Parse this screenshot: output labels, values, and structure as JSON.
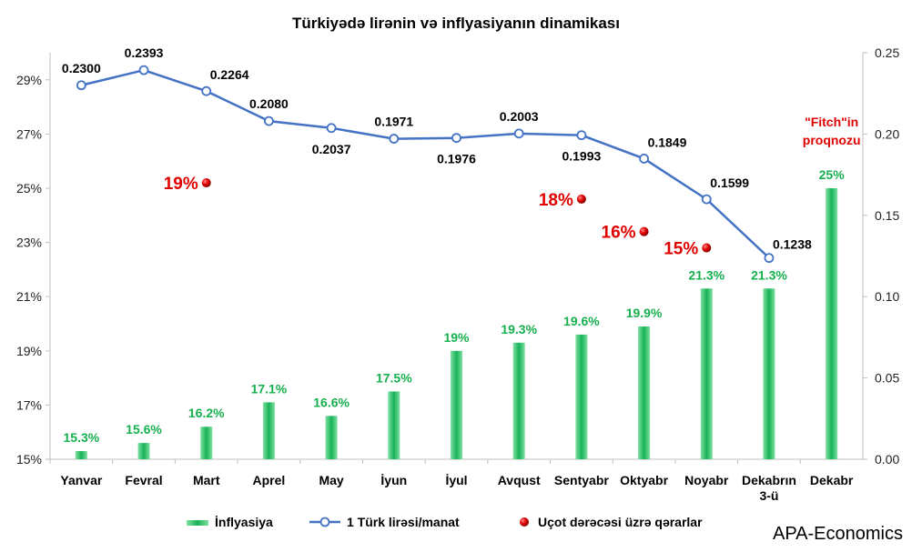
{
  "chart_data": {
    "type": "bar",
    "title": "Türkiyədə lirənin və inflyasiyanın dinamikası",
    "categories": [
      "Yanvar",
      "Fevral",
      "Mart",
      "Aprel",
      "May",
      "İyun",
      "İyul",
      "Avqust",
      "Sentyabr",
      "Oktyabr",
      "Noyabr",
      "Dekabrın 3-ü",
      "Dekabr"
    ],
    "left_axis": {
      "ylim": [
        15,
        30
      ],
      "ticks": [
        "15%",
        "17%",
        "19%",
        "21%",
        "23%",
        "25%",
        "27%",
        "29%"
      ]
    },
    "right_axis": {
      "ylim": [
        0,
        0.25
      ],
      "ticks": [
        "0.00",
        "0.05",
        "0.10",
        "0.15",
        "0.20",
        "0.25"
      ]
    },
    "series": [
      {
        "name": "İnflyasiya",
        "type": "bar",
        "axis": "left",
        "color": "#1fb45a",
        "values": [
          15.3,
          15.6,
          16.2,
          17.1,
          16.6,
          17.5,
          19,
          19.3,
          19.6,
          19.9,
          21.3,
          21.3,
          25
        ],
        "labels": [
          "15.3%",
          "15.6%",
          "16.2%",
          "17.1%",
          "16.6%",
          "17.5%",
          "19%",
          "19.3%",
          "19.6%",
          "19.9%",
          "21.3%",
          "21.3%",
          "25%"
        ]
      },
      {
        "name": "1 Türk lirəsi/manat",
        "type": "line",
        "axis": "right",
        "color": "#4472c4",
        "values": [
          0.23,
          0.2393,
          0.2264,
          0.208,
          0.2037,
          0.1971,
          0.1976,
          0.2003,
          0.1993,
          0.1849,
          0.1599,
          0.1238,
          null
        ],
        "labels": [
          "0.2300",
          "0.2393",
          "0.2264",
          "0.2080",
          "0.2037",
          "0.1971",
          "0.1976",
          "0.2003",
          "0.1993",
          "0.1849",
          "0.1599",
          "0.1238",
          ""
        ]
      },
      {
        "name": "Uçot dərəcəsi üzrə qərarlar",
        "type": "scatter",
        "axis": "left",
        "color": "#e00000",
        "points": [
          {
            "category": "Mart",
            "value": 19,
            "y": 25.2,
            "label": "19%"
          },
          {
            "category": "Sentyabr",
            "value": 18,
            "y": 24.6,
            "label": "18%"
          },
          {
            "category": "Oktyabr",
            "value": 16,
            "y": 23.4,
            "label": "16%"
          },
          {
            "category": "Noyabr",
            "value": 15,
            "y": 22.8,
            "label": "15%"
          }
        ]
      }
    ],
    "annotations": [
      {
        "category": "Dekabr",
        "lines": [
          "\"Fitch\"in",
          "proqnozu"
        ]
      }
    ],
    "legend": {
      "placement": "bottom",
      "items": [
        "İnflyasiya",
        "1 Türk lirəsi/manat",
        "Uçot dərəcəsi üzrə qərarlar"
      ]
    },
    "grid": false
  },
  "brand": "APA-Economics",
  "colors": {
    "bar": "#1fb45a",
    "line": "#4472c4",
    "dot": "#e00000",
    "label_green": "#16b04f"
  }
}
